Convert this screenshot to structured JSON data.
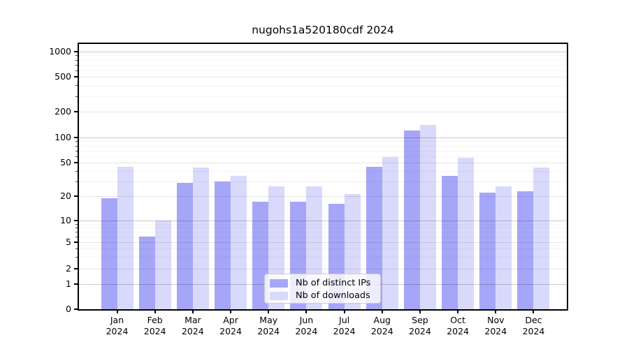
{
  "chart_data": {
    "type": "bar",
    "title": "nugohs1a520180cdf 2024",
    "categories": [
      "Jan",
      "Feb",
      "Mar",
      "Apr",
      "May",
      "Jun",
      "Jul",
      "Aug",
      "Sep",
      "Oct",
      "Nov",
      "Dec"
    ],
    "year": "2024",
    "series": [
      {
        "name": "Nb of distinct IPs",
        "color": "#a6a6f8",
        "values": [
          19,
          6,
          29,
          30,
          17,
          17,
          16,
          45,
          120,
          35,
          22,
          23
        ]
      },
      {
        "name": "Nb of downloads",
        "color": "#d9d9fb",
        "values": [
          45,
          10,
          44,
          35,
          26,
          26,
          21,
          58,
          140,
          57,
          26,
          44
        ]
      }
    ],
    "xlabel": "",
    "ylabel": "",
    "yscale": "symlog",
    "yticks": [
      0,
      1,
      2,
      5,
      10,
      20,
      50,
      100,
      200,
      500,
      1000
    ],
    "ylim": [
      0,
      1000
    ],
    "grid": true,
    "legend_position": "lower center"
  }
}
